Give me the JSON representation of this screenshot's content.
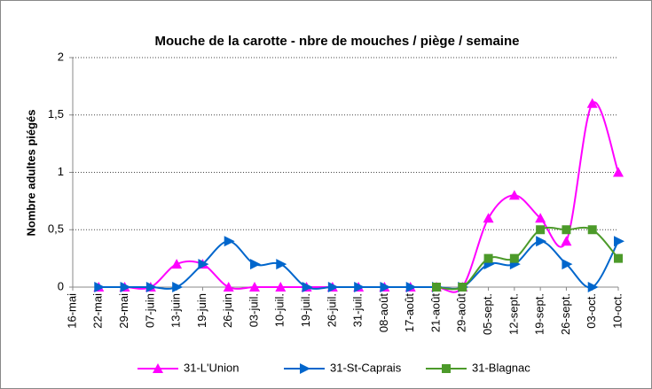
{
  "chart_data": {
    "type": "line",
    "title": "Mouche de la carotte - nbre de mouches / piège  / semaine",
    "y_label": "Nombre adultes piégés",
    "categories": [
      "16-mai",
      "22-mai",
      "29-mai",
      "07-juin",
      "13-juin",
      "19-juin",
      "26-juin",
      "03-juil.",
      "10-juil.",
      "19-juil.",
      "26-juil.",
      "31-juil.",
      "08-août",
      "17-août",
      "21-août",
      "29-août",
      "05-sept.",
      "12-sept.",
      "19-sept.",
      "26-sept.",
      "03-oct.",
      "10-oct."
    ],
    "series": [
      {
        "name": "31-L'Union",
        "color": "#ff00ff",
        "marker": "triangle-up",
        "values": [
          null,
          0,
          0,
          0,
          0.2,
          0.2,
          0,
          0,
          0,
          0,
          0,
          0,
          0,
          0,
          0,
          0,
          0.6,
          0.8,
          0.6,
          0.4,
          1.6,
          1
        ]
      },
      {
        "name": "31-St-Caprais",
        "color": "#0066cc",
        "marker": "triangle-right",
        "values": [
          null,
          0,
          0,
          0,
          0,
          0.2,
          0.4,
          0.2,
          0.2,
          0,
          0,
          0,
          0,
          0,
          0,
          0,
          0.2,
          0.2,
          0.4,
          0.2,
          0,
          0.4
        ]
      },
      {
        "name": "31-Blagnac",
        "color": "#4c9a2a",
        "marker": "square",
        "values": [
          null,
          null,
          null,
          null,
          null,
          null,
          null,
          null,
          null,
          null,
          null,
          null,
          null,
          null,
          0,
          0,
          0.25,
          0.25,
          0.5,
          0.5,
          0.5,
          0.25
        ]
      }
    ],
    "ylim": [
      0,
      2
    ],
    "yticks": [
      0,
      {
        "value": 0.5,
        "label": "0,5"
      },
      1,
      {
        "value": 1.5,
        "label": "1,5"
      },
      2
    ],
    "grid": true,
    "smooth": true,
    "legend": "bottom"
  }
}
